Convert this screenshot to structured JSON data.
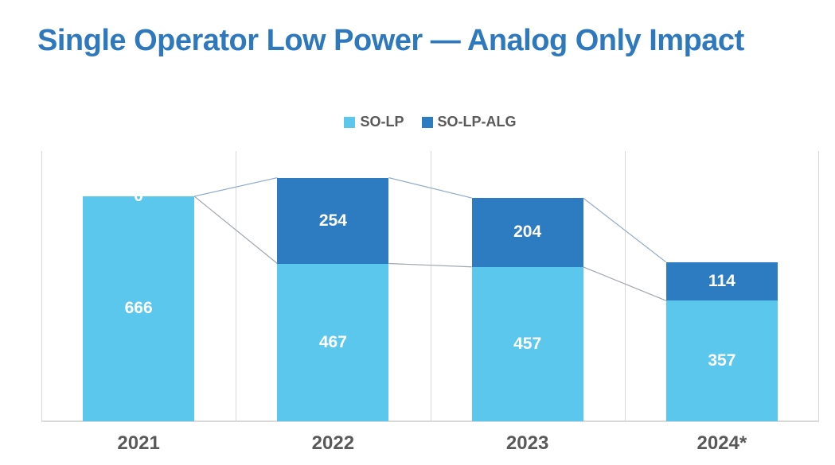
{
  "title": "Single Operator Low Power — Analog Only Impact",
  "legend": [
    {
      "label": "SO-LP",
      "color": "#5BC7EC"
    },
    {
      "label": "SO-LP-ALG",
      "color": "#2D7CC1"
    }
  ],
  "chart_data": {
    "type": "bar",
    "stacked": true,
    "title": "Single Operator Low Power — Analog Only Impact",
    "categories": [
      "2021",
      "2022",
      "2023",
      "2024*"
    ],
    "series": [
      {
        "name": "SO-LP",
        "color": "#5BC7EC",
        "values": [
          666,
          467,
          457,
          357
        ]
      },
      {
        "name": "SO-LP-ALG",
        "color": "#2D7CC1",
        "values": [
          0,
          254,
          204,
          114
        ]
      }
    ],
    "totals": [
      666,
      721,
      661,
      471
    ],
    "xlabel": "",
    "ylabel": "",
    "ylim": [
      0,
      800
    ],
    "y_axis_visible": false,
    "grid": "vertical category boundaries only",
    "legend_position": "top-center",
    "data_label_color": "#FFFFFF",
    "series_connector_lines": true,
    "connector_color_upper": "#8FA9CC",
    "connector_color_lower": "#9FA6AF",
    "gridline_color": "#D9D9D9",
    "axis_text_color": "#595959",
    "title_color": "#2E79BE"
  }
}
